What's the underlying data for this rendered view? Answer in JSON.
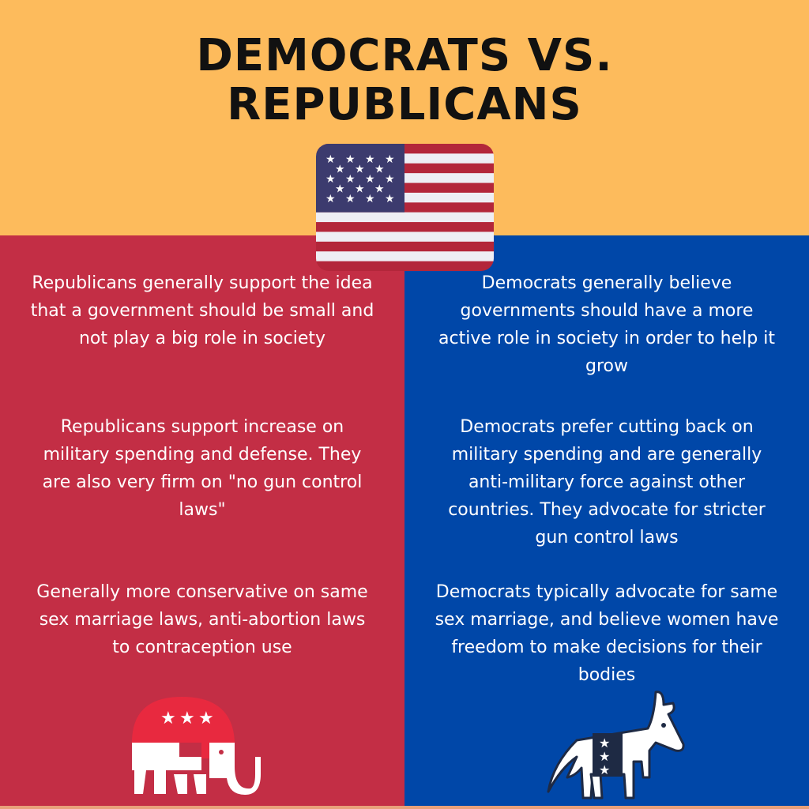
{
  "title": {
    "line1": "DEMOCRATS VS.",
    "line2": "REPUBLICANS"
  },
  "colors": {
    "top": "#fdbb5c",
    "republican": "#c32e45",
    "democrat": "#0047a8"
  },
  "republicans": [
    "Republicans generally support the idea that a government should be small and not play a big role in society",
    "Republicans support increase on military spending and defense. They are also very firm on \"no gun control laws\"",
    "Generally more conservative on same sex marriage laws, anti-abortion laws to contraception use"
  ],
  "democrats": [
    "Democrats generally believe governments should have a more active role in society in order to help it grow",
    "Democrats prefer cutting back on military spending and are generally anti-military force against other countries. They advocate for stricter gun control laws",
    "Democrats typically advocate for same sex marriage, and believe women have freedom to make decisions for their bodies"
  ],
  "icons": {
    "flag": "us-flag-icon",
    "republican": "elephant-icon",
    "democrat": "donkey-icon"
  }
}
